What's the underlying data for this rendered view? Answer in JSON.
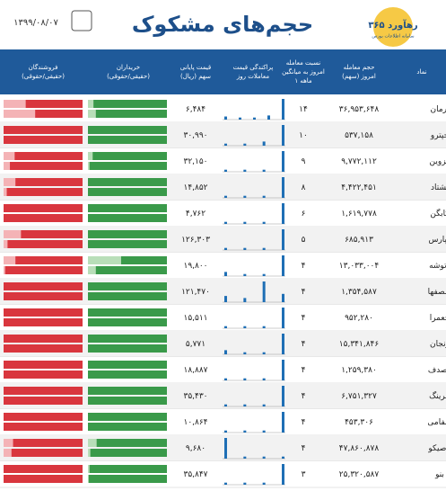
{
  "header": {
    "title": "حجم‌های مشکوک",
    "date": "۱۳۹۹/۰۸/۰۷",
    "logo": "رهآورد ۳۶۵",
    "logo_sub": "سامانه اطلاعات بورس"
  },
  "columns": {
    "symbol": [
      "نماد"
    ],
    "volume": [
      "حجم معامله",
      "امروز (سهم)"
    ],
    "ratio": [
      "نسبت معامله",
      "امروز به میانگین",
      "۱ ماهه"
    ],
    "dispersion": [
      "پراکندگی قیمت",
      "معاملات روز"
    ],
    "price": [
      "قیمت پایانی",
      "سهم (ریال)"
    ],
    "buyers": [
      "خریداران",
      "(حقیقی/حقوقی)"
    ],
    "sellers": [
      "فروشندگان",
      "(حقیقی/حقوقی)"
    ]
  },
  "rows": [
    {
      "symbol": "آرمان",
      "volume": "۳۶,۹۵۳,۶۴۸",
      "ratio": "۱۴",
      "price": "۶,۴۸۴",
      "dispersion": [
        0.15,
        0.1,
        0.1,
        0.2,
        1
      ],
      "buy": [
        93,
        90
      ],
      "sell": [
        72,
        60
      ]
    },
    {
      "symbol": "حپترو",
      "volume": "۵۳۷,۱۵۸",
      "ratio": "۱۰",
      "price": "۳۰,۹۹۰",
      "dispersion": [
        0.1,
        0.1,
        0.2,
        1
      ],
      "buy": [
        100,
        100
      ],
      "sell": [
        100,
        100
      ]
    },
    {
      "symbol": "قزوین",
      "volume": "۹,۷۷۲,۱۱۲",
      "ratio": "۹",
      "price": "۳۲,۱۵۰",
      "dispersion": [
        0.1,
        0.1,
        0.1,
        1
      ],
      "buy": [
        94,
        98
      ],
      "sell": [
        86,
        92
      ]
    },
    {
      "symbol": "تشتاد",
      "volume": "۴,۴۲۲,۴۵۱",
      "ratio": "۸",
      "price": "۱۴,۸۵۲",
      "dispersion": [
        0.1,
        0.1,
        0.1,
        1
      ],
      "buy": [
        100,
        100
      ],
      "sell": [
        85,
        96
      ]
    },
    {
      "symbol": "کابگن",
      "volume": "۱,۶۱۹,۷۷۸",
      "ratio": "۶",
      "price": "۴,۷۶۲",
      "dispersion": [
        0.1,
        0.1,
        0.1,
        1
      ],
      "buy": [
        100,
        100
      ],
      "sell": [
        100,
        100
      ]
    },
    {
      "symbol": "گپارس",
      "volume": "۶۸۵,۹۱۳",
      "ratio": "۵",
      "price": "۱۲۶,۳۰۳",
      "dispersion": [
        0.1,
        0.1,
        0.1,
        1
      ],
      "buy": [
        100,
        100
      ],
      "sell": [
        78,
        95
      ]
    },
    {
      "symbol": "وتوشه",
      "volume": "۱۳,۰۳۳,۰۰۴",
      "ratio": "۴",
      "price": "۱۹,۸۰۰",
      "dispersion": [
        0.2,
        0.1,
        0.1,
        1
      ],
      "buy": [
        58,
        90
      ],
      "sell": [
        85,
        98
      ]
    },
    {
      "symbol": "سصفها",
      "volume": "۱,۳۵۴,۵۸۷",
      "ratio": "۴",
      "price": "۱۲۱,۴۷۰",
      "dispersion": [
        0.3,
        0.2,
        1,
        0.4
      ],
      "buy": [
        100,
        100
      ],
      "sell": [
        100,
        100
      ]
    },
    {
      "symbol": "خعمرا",
      "volume": "۹۵۲,۲۸۰",
      "ratio": "۴",
      "price": "۱۵,۵۱۱",
      "dispersion": [
        0.1,
        0.1,
        0.1,
        1
      ],
      "buy": [
        100,
        100
      ],
      "sell": [
        100,
        100
      ]
    },
    {
      "symbol": "زنجان",
      "volume": "۱۵,۳۴۱,۸۴۶",
      "ratio": "۴",
      "price": "۵,۷۷۱",
      "dispersion": [
        0.2,
        0.1,
        0.1,
        1
      ],
      "buy": [
        100,
        100
      ],
      "sell": [
        100,
        100
      ]
    },
    {
      "symbol": "کصدف",
      "volume": "۱,۲۵۹,۳۸۰",
      "ratio": "۴",
      "price": "۱۸,۸۸۷",
      "dispersion": [
        0.1,
        0.1,
        0.1,
        1
      ],
      "buy": [
        100,
        100
      ],
      "sell": [
        100,
        100
      ]
    },
    {
      "symbol": "خرینگ",
      "volume": "۶,۷۵۱,۳۲۷",
      "ratio": "۴",
      "price": "۳۵,۴۳۰",
      "dispersion": [
        0.1,
        0.1,
        0.1,
        1
      ],
      "buy": [
        100,
        100
      ],
      "sell": [
        100,
        100
      ]
    },
    {
      "symbol": "سفامی",
      "volume": "۴۵۳,۳۰۶",
      "ratio": "۴",
      "price": "۱۰,۸۶۴",
      "dispersion": [
        0.1,
        0.1,
        0.1,
        1
      ],
      "buy": [
        100,
        100
      ],
      "sell": [
        100,
        100
      ]
    },
    {
      "symbol": "تاصیکو",
      "volume": "۴۷,۸۶۰,۸۷۸",
      "ratio": "۴",
      "price": "۹,۶۸۰",
      "dispersion": [
        1,
        0.1,
        0.1,
        0.1
      ],
      "buy": [
        89,
        97
      ],
      "sell": [
        88,
        90
      ]
    },
    {
      "symbol": "بنو",
      "volume": "۲۵,۳۲۰,۵۸۷",
      "ratio": "۳",
      "price": "۳۵,۸۴۷",
      "dispersion": [
        0.1,
        0.1,
        0.1,
        1
      ],
      "buy": [
        98,
        99
      ],
      "sell": [
        100,
        100
      ]
    }
  ]
}
